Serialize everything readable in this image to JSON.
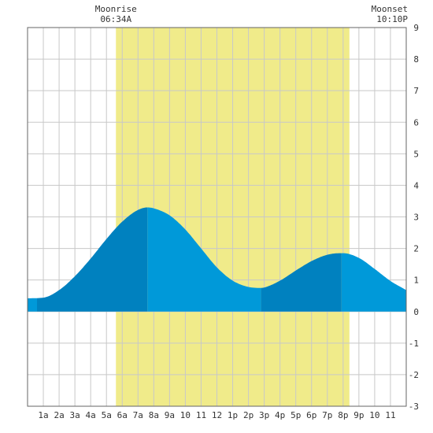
{
  "chart_data": {
    "type": "area",
    "title": "",
    "xlabel": "",
    "ylabel": "",
    "x_range_hours": [
      0,
      24
    ],
    "ylim": [
      -3,
      9
    ],
    "y_ticks": [
      -3,
      -2,
      -1,
      0,
      1,
      2,
      3,
      4,
      5,
      6,
      7,
      8,
      9
    ],
    "y_axis_side": "right",
    "grid": true,
    "x_ticks": [
      {
        "hour": 1,
        "label": "1a"
      },
      {
        "hour": 2,
        "label": "2a"
      },
      {
        "hour": 3,
        "label": "3a"
      },
      {
        "hour": 4,
        "label": "4a"
      },
      {
        "hour": 5,
        "label": "5a"
      },
      {
        "hour": 6,
        "label": "6a"
      },
      {
        "hour": 7,
        "label": "7a"
      },
      {
        "hour": 8,
        "label": "8a"
      },
      {
        "hour": 9,
        "label": "9a"
      },
      {
        "hour": 10,
        "label": "10"
      },
      {
        "hour": 11,
        "label": "11"
      },
      {
        "hour": 12,
        "label": "12"
      },
      {
        "hour": 13,
        "label": "1p"
      },
      {
        "hour": 14,
        "label": "2p"
      },
      {
        "hour": 15,
        "label": "3p"
      },
      {
        "hour": 16,
        "label": "4p"
      },
      {
        "hour": 17,
        "label": "5p"
      },
      {
        "hour": 18,
        "label": "6p"
      },
      {
        "hour": 19,
        "label": "7p"
      },
      {
        "hour": 20,
        "label": "8p"
      },
      {
        "hour": 21,
        "label": "9p"
      },
      {
        "hour": 22,
        "label": "10"
      },
      {
        "hour": 23,
        "label": "11"
      }
    ],
    "tide_extremes": [
      {
        "hour": 0.6,
        "value": 0.4,
        "kind": "low"
      },
      {
        "hour": 7.6,
        "value": 3.3,
        "kind": "high"
      },
      {
        "hour": 14.8,
        "value": 0.75,
        "kind": "low"
      },
      {
        "hour": 19.9,
        "value": 1.85,
        "kind": "high"
      }
    ],
    "series": [
      {
        "values_hour_height": [
          [
            0,
            0.42
          ],
          [
            1,
            0.44
          ],
          [
            2,
            0.68
          ],
          [
            3,
            1.12
          ],
          [
            4,
            1.68
          ],
          [
            5,
            2.3
          ],
          [
            6,
            2.85
          ],
          [
            7,
            3.22
          ],
          [
            7.6,
            3.3
          ],
          [
            8,
            3.27
          ],
          [
            9,
            3.05
          ],
          [
            10,
            2.6
          ],
          [
            11,
            2.0
          ],
          [
            12,
            1.4
          ],
          [
            13,
            0.98
          ],
          [
            14,
            0.78
          ],
          [
            14.8,
            0.75
          ],
          [
            15,
            0.76
          ],
          [
            16,
            0.98
          ],
          [
            17,
            1.3
          ],
          [
            18,
            1.6
          ],
          [
            19,
            1.8
          ],
          [
            19.9,
            1.85
          ],
          [
            20,
            1.85
          ],
          [
            21,
            1.7
          ],
          [
            22,
            1.35
          ],
          [
            23,
            0.97
          ],
          [
            24,
            0.68
          ]
        ]
      }
    ],
    "daylight_band_hours": [
      5.6,
      20.4
    ],
    "annotations": [
      {
        "hour": 5.6,
        "line1": "Moonrise",
        "line2": "06:34A"
      },
      {
        "hour": 24,
        "line1": "Moonset",
        "line2": "10:10P"
      }
    ],
    "colors": {
      "rising": "#0081bf",
      "falling": "#0099d9",
      "band": "#f0eb8a",
      "grid": "#c8c8c8",
      "frame": "#666666",
      "background": "#ffffff"
    }
  }
}
